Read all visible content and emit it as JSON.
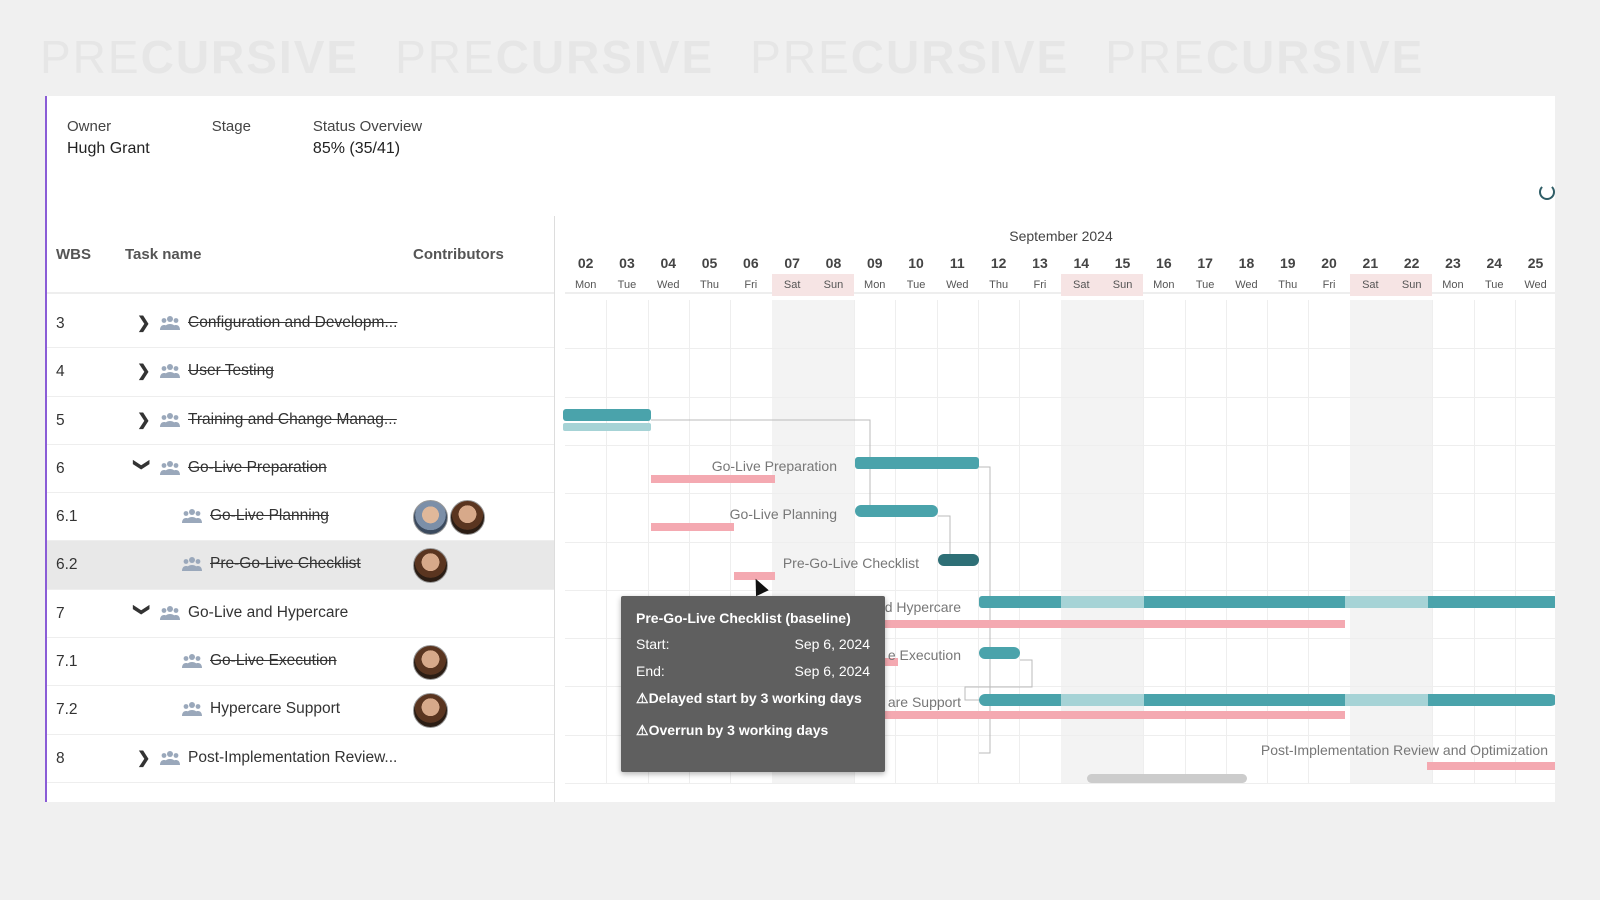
{
  "watermark": {
    "bold": "CURSIVE",
    "light": "PRE"
  },
  "summary": {
    "owner_label": "Owner",
    "owner_value": "Hugh Grant",
    "stage_label": "Stage",
    "stage_value": "",
    "status_label": "Status Overview",
    "status_value": "85% (35/41)"
  },
  "grid_header": {
    "wbs": "WBS",
    "task": "Task name",
    "contributors": "Contributors"
  },
  "tasks": [
    {
      "wbs": "3",
      "name": "Configuration and Developm...",
      "expand": "collapsed",
      "done": true,
      "avatars": 0
    },
    {
      "wbs": "4",
      "name": "User Testing",
      "expand": "collapsed",
      "done": true,
      "avatars": 0
    },
    {
      "wbs": "5",
      "name": "Training and Change Manag...",
      "expand": "collapsed",
      "done": true,
      "avatars": 0
    },
    {
      "wbs": "6",
      "name": "Go-Live Preparation",
      "expand": "expanded",
      "done": true,
      "avatars": 0
    },
    {
      "wbs": "6.1",
      "name": "Go-Live Planning",
      "expand": "none",
      "done": true,
      "avatars": 2
    },
    {
      "wbs": "6.2",
      "name": "Pre-Go-Live Checklist",
      "expand": "none",
      "done": true,
      "avatars": 1,
      "selected": true
    },
    {
      "wbs": "7",
      "name": "Go-Live and Hypercare",
      "expand": "expanded",
      "done": false,
      "avatars": 0
    },
    {
      "wbs": "7.1",
      "name": "Go-Live Execution",
      "expand": "none",
      "done": true,
      "avatars": 1
    },
    {
      "wbs": "7.2",
      "name": "Hypercare Support",
      "expand": "none",
      "done": false,
      "avatars": 1
    },
    {
      "wbs": "8",
      "name": "Post-Implementation Review...",
      "expand": "collapsed",
      "done": false,
      "avatars": 0
    }
  ],
  "timeline": {
    "month": "September 2024",
    "days": [
      {
        "n": "02",
        "w": "Mon"
      },
      {
        "n": "03",
        "w": "Tue"
      },
      {
        "n": "04",
        "w": "Wed"
      },
      {
        "n": "05",
        "w": "Thu"
      },
      {
        "n": "06",
        "w": "Fri"
      },
      {
        "n": "07",
        "w": "Sat"
      },
      {
        "n": "08",
        "w": "Sun"
      },
      {
        "n": "09",
        "w": "Mon"
      },
      {
        "n": "10",
        "w": "Tue"
      },
      {
        "n": "11",
        "w": "Wed"
      },
      {
        "n": "12",
        "w": "Thu"
      },
      {
        "n": "13",
        "w": "Fri"
      },
      {
        "n": "14",
        "w": "Sat"
      },
      {
        "n": "15",
        "w": "Sun"
      },
      {
        "n": "16",
        "w": "Mon"
      },
      {
        "n": "17",
        "w": "Tue"
      },
      {
        "n": "18",
        "w": "Wed"
      },
      {
        "n": "19",
        "w": "Thu"
      },
      {
        "n": "20",
        "w": "Fri"
      },
      {
        "n": "21",
        "w": "Sat"
      },
      {
        "n": "22",
        "w": "Sun"
      },
      {
        "n": "23",
        "w": "Mon"
      },
      {
        "n": "24",
        "w": "Tue"
      },
      {
        "n": "25",
        "w": "Wed"
      }
    ],
    "bar_labels": {
      "golive_prep": "Go-Live Preparation",
      "golive_planning": "Go-Live Planning",
      "pre_checklist": "Pre-Go-Live Checklist",
      "hypercare": "d Hypercare",
      "execution": "e Execution",
      "support": "are Support",
      "post_impl": "Post-Implementation Review and Optimization"
    },
    "colors": {
      "bar": "#4aa3ab",
      "baseline": "#f4a9b1",
      "dark_bar": "#2e6f76"
    }
  },
  "tooltip": {
    "title": "Pre-Go-Live Checklist (baseline)",
    "start_label": "Start:",
    "start_value": "Sep 6, 2024",
    "end_label": "End:",
    "end_value": "Sep 6, 2024",
    "warn1": "Delayed start by 3 working days",
    "warn2": "Overrun by 3 working days"
  }
}
